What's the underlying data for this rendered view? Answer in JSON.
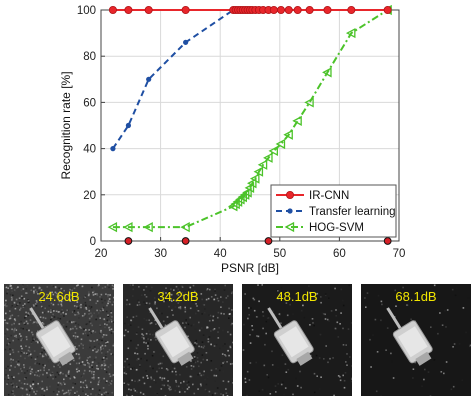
{
  "chart_data": {
    "type": "line",
    "xlabel": "PSNR [dB]",
    "ylabel": "Recognition rate [%]",
    "xlim": [
      20,
      70
    ],
    "ylim": [
      0,
      100
    ],
    "xticks": [
      20,
      30,
      40,
      50,
      60,
      70
    ],
    "yticks": [
      0,
      20,
      40,
      60,
      80,
      100
    ],
    "grid": true,
    "legend_position": "bottom-right",
    "series": [
      {
        "name": "IR-CNN",
        "color": "#e8262b",
        "line_style": "solid",
        "marker": "circle",
        "x": [
          22,
          24.6,
          28,
          34.2,
          42.2,
          42.6,
          43,
          43.4,
          43.8,
          44.2,
          44.6,
          45,
          45.4,
          45.9,
          46.5,
          47.2,
          48.1,
          49,
          50.2,
          51.5,
          53,
          55,
          58,
          62,
          68.1
        ],
        "y": [
          100,
          100,
          100,
          100,
          100,
          100,
          100,
          100,
          100,
          100,
          100,
          100,
          100,
          100,
          100,
          100,
          100,
          100,
          100,
          100,
          100,
          100,
          100,
          100,
          100
        ]
      },
      {
        "name": "Transfer learning",
        "color": "#1f4fa3",
        "line_style": "dashed",
        "marker": "dot",
        "x": [
          22,
          24.6,
          28,
          34.2,
          42.2,
          42.6,
          43,
          43.4,
          43.8,
          44.2,
          44.6,
          45,
          45.4,
          45.9,
          46.5,
          47.2,
          48.1,
          49,
          50.2,
          51.5,
          53,
          55,
          58,
          62,
          68.1
        ],
        "y": [
          40,
          50,
          70,
          86,
          100,
          100,
          100,
          100,
          100,
          100,
          100,
          100,
          100,
          100,
          100,
          100,
          100,
          100,
          100,
          100,
          100,
          100,
          100,
          100,
          100
        ]
      },
      {
        "name": "HOG-SVM",
        "color": "#4cc32a",
        "line_style": "dash-dot",
        "marker": "triangle-left",
        "x": [
          22,
          24.6,
          28,
          34.2,
          42.2,
          42.6,
          43,
          43.4,
          43.8,
          44.2,
          44.6,
          45,
          45.4,
          45.9,
          46.5,
          47.2,
          48.1,
          49,
          50.2,
          51.5,
          53,
          55,
          58,
          62,
          68.1
        ],
        "y": [
          6,
          6,
          6,
          6,
          15,
          16,
          17,
          18,
          19,
          20,
          21,
          23,
          25,
          27,
          30,
          33,
          36,
          39,
          42,
          46,
          52,
          60,
          73,
          90,
          100
        ]
      }
    ],
    "markers_on_x_axis": {
      "color": "#d61f26",
      "x": [
        24.6,
        34.2,
        48.1,
        68.1
      ]
    }
  },
  "thumbnails": [
    {
      "label": "24.6dB",
      "noise": 0.7
    },
    {
      "label": "34.2dB",
      "noise": 0.35
    },
    {
      "label": "48.1dB",
      "noise": 0.12
    },
    {
      "label": "68.1dB",
      "noise": 0.05
    }
  ]
}
